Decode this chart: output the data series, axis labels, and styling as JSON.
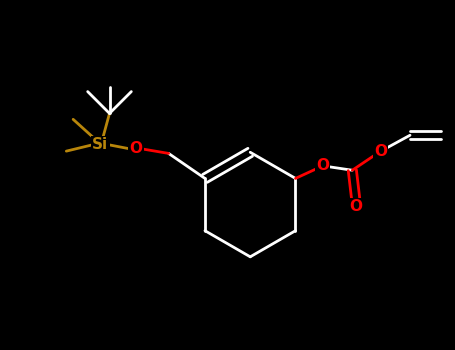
{
  "background_color": "#000000",
  "bond_color": "#ffffff",
  "oxygen_color": "#ff0000",
  "silicon_color": "#b8860b",
  "lw": 2.0,
  "fig_width": 4.55,
  "fig_height": 3.5,
  "dpi": 100,
  "xlim": [
    0,
    10
  ],
  "ylim": [
    0,
    7.7
  ]
}
